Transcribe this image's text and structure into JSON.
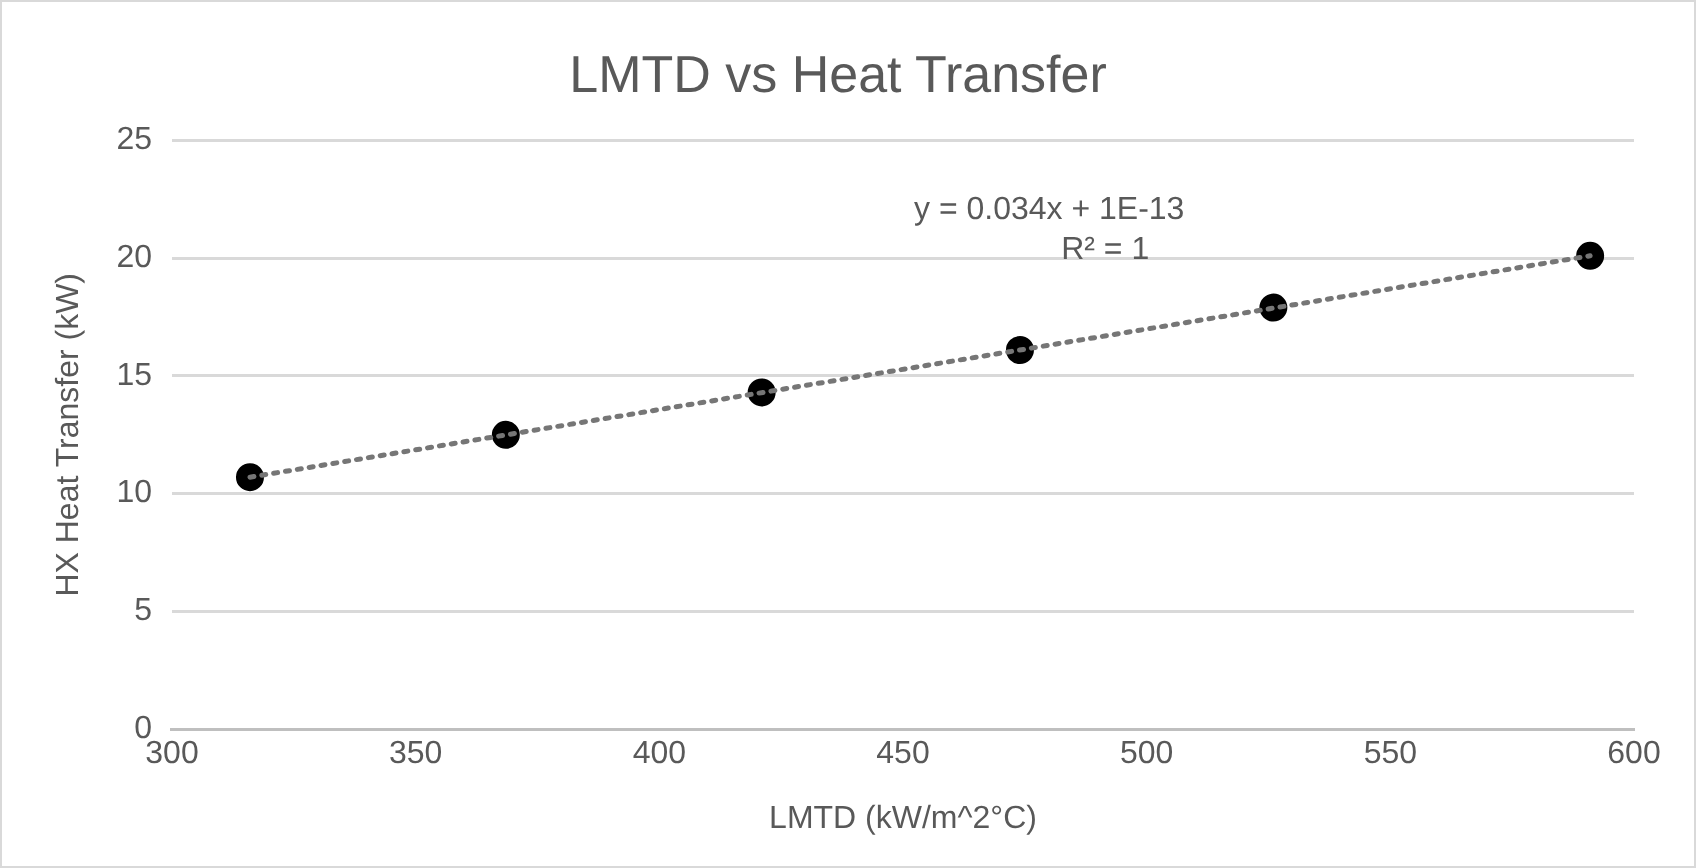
{
  "chart_data": {
    "type": "scatter",
    "title": "LMTD vs Heat Transfer",
    "xlabel": "LMTD (kW/m^2°C)",
    "ylabel": "HX Heat Transfer (kW)",
    "xlim": [
      300,
      600
    ],
    "xticks": [
      300,
      350,
      400,
      450,
      500,
      550,
      600
    ],
    "ylim": [
      0,
      25
    ],
    "yticks": [
      0,
      5,
      10,
      15,
      20,
      25
    ],
    "grid": "y",
    "legend": false,
    "series": [
      {
        "type": "scatter",
        "color": "#000000",
        "marker": "circle",
        "x": [
          316,
          368.5,
          421,
          474,
          526,
          591
        ],
        "values": [
          10.7,
          12.5,
          14.3,
          16.1,
          17.9,
          20.1
        ]
      },
      {
        "type": "line",
        "color": "#767676",
        "line_style": "dotted",
        "marker": "none",
        "x": [
          316,
          591
        ],
        "values": [
          10.7,
          20.1
        ]
      }
    ],
    "annotations": [
      "y = 0.034x + 1E-13",
      "R² = 1"
    ]
  }
}
